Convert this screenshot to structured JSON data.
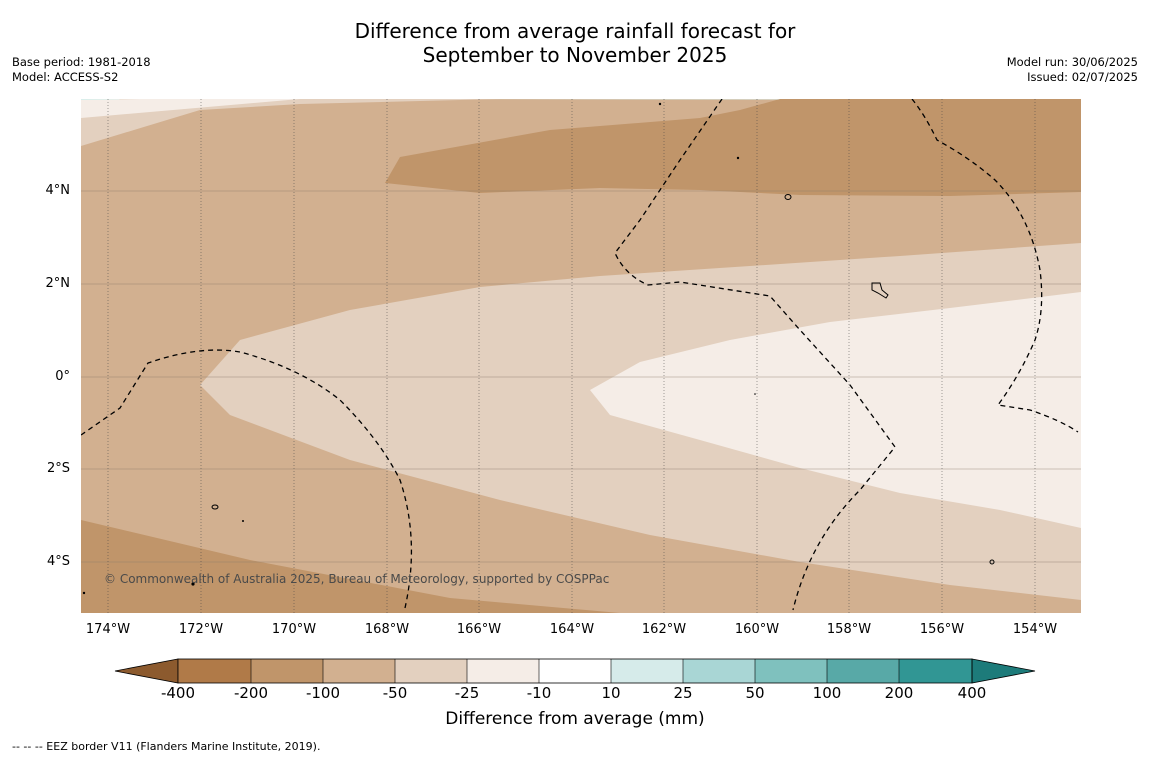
{
  "title_line1": "Difference from average rainfall forecast for",
  "title_line2": "September to November 2025",
  "base_period": "Base period: 1981-2018",
  "model": "Model: ACCESS-S2",
  "model_run": "Model run: 30/06/2025",
  "issued": "Issued: 02/07/2025",
  "copyright": "© Commonwealth of Australia 2025, Bureau of Meteorology, supported by COSPPac",
  "lat_labels": [
    "4°N",
    "2°N",
    "0°",
    "2°S",
    "4°S"
  ],
  "lon_labels": [
    "174°W",
    "172°W",
    "170°W",
    "168°W",
    "166°W",
    "164°W",
    "162°W",
    "160°W",
    "158°W",
    "156°W",
    "154°W"
  ],
  "colorbar": {
    "title": "Difference from average (mm)",
    "tick_labels": [
      "-400",
      "-200",
      "-100",
      "-50",
      "-25",
      "-10",
      "10",
      "25",
      "50",
      "100",
      "200",
      "400"
    ],
    "colors": [
      "#8c5a2e",
      "#b07a48",
      "#c0956a",
      "#d2b090",
      "#e3d0bf",
      "#f5ede7",
      "#ffffff",
      "#d6ebea",
      "#a9d6d5",
      "#7fc1be",
      "#58a9a7",
      "#319694",
      "#1d7b7a"
    ]
  },
  "footer": "--  --  -- EEZ border V11 (Flanders Marine Institute, 2019)."
}
